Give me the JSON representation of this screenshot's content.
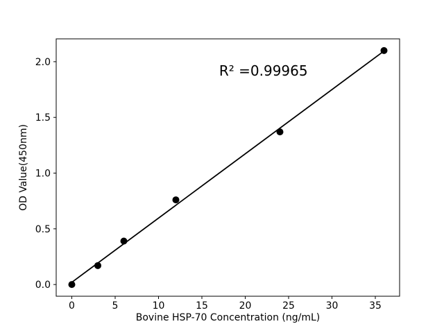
{
  "figure": {
    "background_color": "#ffffff",
    "foreground_color": "#000000"
  },
  "chart_data": {
    "type": "scatter",
    "title": "",
    "xlabel": "Bovine HSP-70 Concentration (ng/mL)",
    "ylabel": "OD Value(450nm)",
    "x": [
      0,
      3,
      6,
      12,
      24,
      36
    ],
    "y": [
      0.0,
      0.17,
      0.39,
      0.76,
      1.37,
      2.1
    ],
    "fit_line": true,
    "xlim": [
      -1.8,
      37.8
    ],
    "ylim": [
      -0.105,
      2.205
    ],
    "xticks": [
      0,
      5,
      10,
      15,
      20,
      25,
      30,
      35
    ],
    "xticklabels": [
      "0",
      "5",
      "10",
      "15",
      "20",
      "25",
      "30",
      "35"
    ],
    "yticks": [
      0.0,
      0.5,
      1.0,
      1.5,
      2.0
    ],
    "yticklabels": [
      "0.0",
      "0.5",
      "1.0",
      "1.5",
      "2.0"
    ],
    "annotation": {
      "text": "R² =0.99965",
      "x": 22.1,
      "y": 1.92
    },
    "grid": false,
    "legend": null,
    "marker_color": "#000000",
    "line_color": "#000000",
    "axis_color": "#000000",
    "text_color": "#000000"
  }
}
